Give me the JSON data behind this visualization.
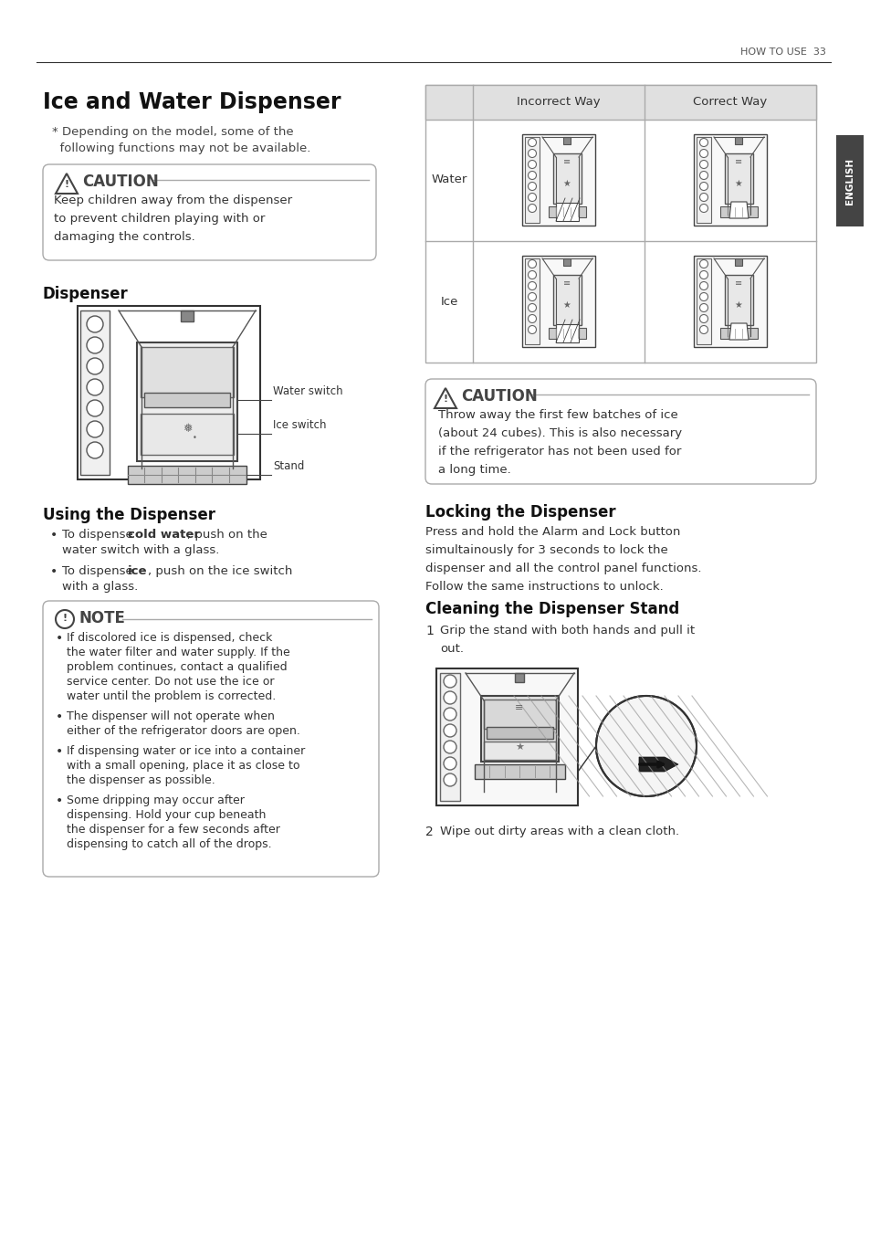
{
  "page_header": "HOW TO USE  33",
  "title": "Ice and Water Dispenser",
  "subtitle_line1": "* Depending on the model, some of the",
  "subtitle_line2": "  following functions may not be available.",
  "caution1_title": "CAUTION",
  "caution1_text": "Keep children away from the dispenser\nto prevent children playing with or\ndamaging the controls.",
  "dispenser_title": "Dispenser",
  "dispenser_labels": [
    "Water switch",
    "Ice switch",
    "Stand"
  ],
  "using_title": "Using the Dispenser",
  "note_title": "NOTE",
  "note_bullets": [
    "If discolored ice is dispensed, check\nthe water filter and water supply. If the\nproblem continues, contact a qualified\nservice center. Do not use the ice or\nwater until the problem is corrected.",
    "The dispenser will not operate when\neither of the refrigerator doors are open.",
    "If dispensing water or ice into a container\nwith a small opening, place it as close to\nthe dispenser as possible.",
    "Some dripping may occur after\ndispensing. Hold your cup beneath\nthe dispenser for a few seconds after\ndispensing to catch all of the drops."
  ],
  "table_header_incorrect": "Incorrect Way",
  "table_header_correct": "Correct Way",
  "table_row1_label": "Water",
  "table_row2_label": "Ice",
  "caution2_title": "CAUTION",
  "caution2_text": "Throw away the first few batches of ice\n(about 24 cubes). This is also necessary\nif the refrigerator has not been used for\na long time.",
  "locking_title": "Locking the Dispenser",
  "locking_text": "Press and hold the Alarm and Lock button\nsimultainously for 3 seconds to lock the\ndispenser and all the control panel functions.\nFollow the same instructions to unlock.",
  "cleaning_title": "Cleaning the Dispenser Stand",
  "cleaning_step1_text": "Grip the stand with both hands and pull it\nout.",
  "cleaning_step2_text": "Wipe out dirty areas with a clean cloth.",
  "english_label": "ENGLISH",
  "bg_color": "#ffffff"
}
